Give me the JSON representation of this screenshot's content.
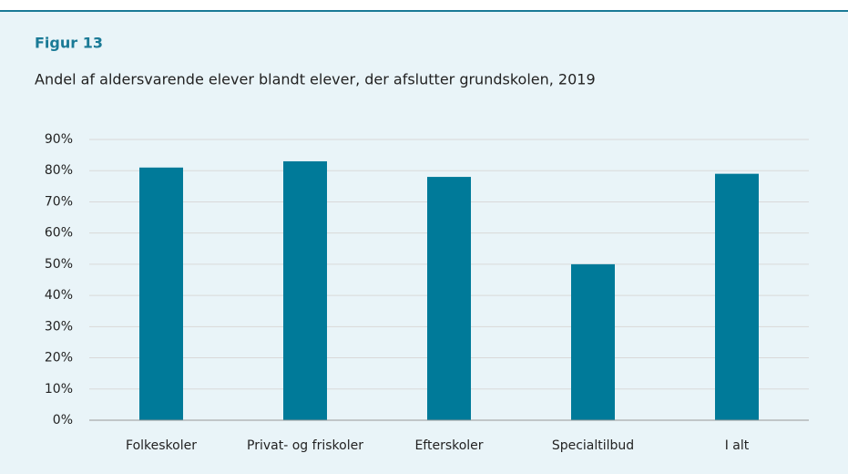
{
  "chart_data": {
    "type": "bar",
    "figure_label": "Figur 13",
    "title": "Andel af aldersvarende elever blandt elever, der afslutter grundskolen, 2019",
    "categories": [
      "Folkeskoler",
      "Privat- og friskoler",
      "Efterskoler",
      "Specialtilbud",
      "I alt"
    ],
    "values": [
      81,
      83,
      78,
      50,
      79
    ],
    "color": "#007a99",
    "ylim": [
      0,
      90
    ],
    "yticks": [
      {
        "value": 0,
        "label": "0%"
      },
      {
        "value": 10,
        "label": "10%"
      },
      {
        "value": 20,
        "label": "20%"
      },
      {
        "value": 30,
        "label": "30%"
      },
      {
        "value": 40,
        "label": "40%"
      },
      {
        "value": 50,
        "label": "50%"
      },
      {
        "value": 60,
        "label": "60%"
      },
      {
        "value": 70,
        "label": "70%"
      },
      {
        "value": 80,
        "label": "80%"
      },
      {
        "value": 90,
        "label": "90%"
      }
    ],
    "grid": true
  }
}
